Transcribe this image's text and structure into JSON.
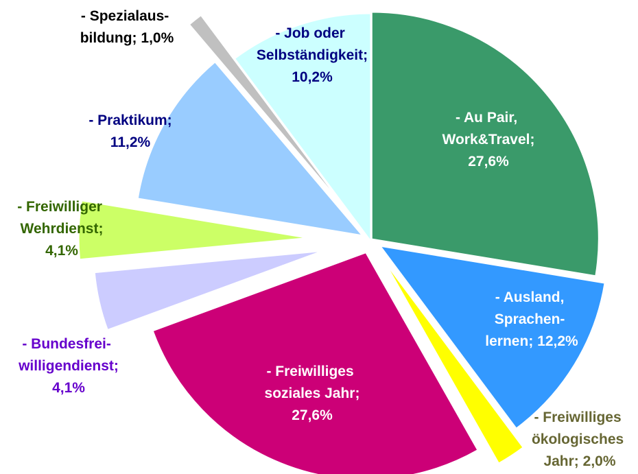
{
  "chart_data": {
    "type": "pie",
    "categories": [
      "- Au Pair,\nWork&Travel;",
      "- Ausland,\nSprachen-\nlernen;",
      "- Freiwilliges\nökologisches\nJahr;",
      "- Freiwilliges\nsoziales Jahr;",
      "- Bundesfrei-\nwilligendienst;",
      "- Freiwilliger\nWehrdienst;",
      "- Praktikum;",
      "- Spezialaus-\nbildung;",
      "- Job oder\nSelbständigkeit;"
    ],
    "values": [
      27.6,
      12.2,
      2.0,
      27.6,
      4.1,
      4.1,
      11.2,
      1.0,
      10.2
    ],
    "value_labels": [
      "27,6%",
      "12,2%",
      "2,0%",
      "27,6%",
      "4,1%",
      "4,1%",
      "11,2%",
      "1,0%",
      "10,2%"
    ],
    "colors": [
      "#3a9a6a",
      "#3399ff",
      "#ffff00",
      "#cc0077",
      "#ccccff",
      "#ccff66",
      "#99ccff",
      "#c0c0c0",
      "#ccffff"
    ],
    "label_colors": [
      "#ffffff",
      "#ffffff",
      "#666633",
      "#ffffff",
      "#6600cc",
      "#336600",
      "#000080",
      "#000000",
      "#000080"
    ]
  }
}
